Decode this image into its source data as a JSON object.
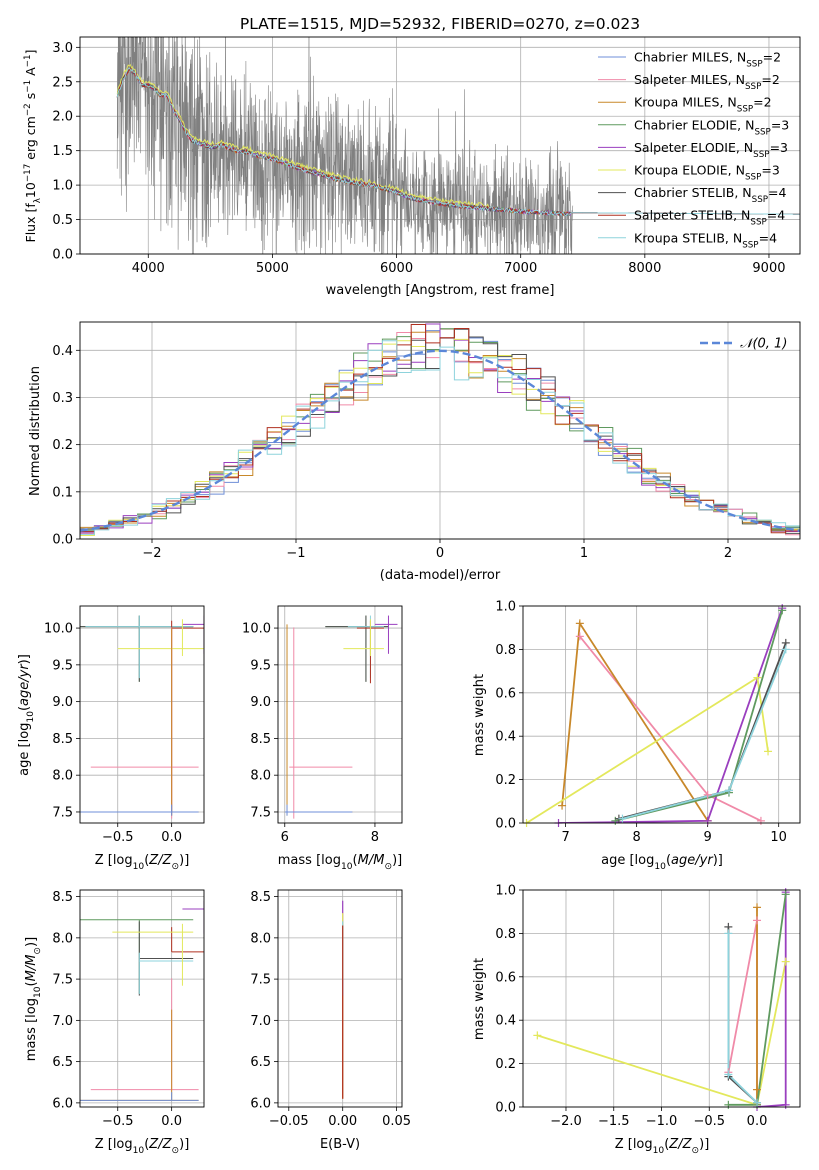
{
  "figure": {
    "title": "PLATE=1515, MJD=52932, FIBERID=0270, z=0.023"
  },
  "model_colors": [
    "#6f8fd8",
    "#f08aa8",
    "#c8882a",
    "#5f9a5f",
    "#9a3fbf",
    "#e3e85c",
    "#505050",
    "#b03020",
    "#8ed3dc"
  ],
  "chart_data": [
    {
      "id": "spectrum",
      "type": "line",
      "xlabel": "wavelength [Angstrom, rest frame]",
      "ylabel": "Flux [f_λ 10^-17 erg cm^-2 s^-1 A^-1]",
      "xlim": [
        3450,
        9250
      ],
      "ylim": [
        0,
        3.15
      ],
      "xticks": [
        4000,
        5000,
        6000,
        7000,
        8000,
        9000
      ],
      "yticks": [
        0.0,
        0.5,
        1.0,
        1.5,
        2.0,
        2.5,
        3.0
      ],
      "yticklabels": [
        "0.0",
        "0.5",
        "1.0",
        "1.5",
        "2.0",
        "2.5",
        "3.0"
      ],
      "legend_position": "top-right",
      "data_color": "#808080",
      "data_range": [
        3750,
        7420
      ],
      "legend": [
        {
          "name": "Chabrier MILES",
          "nssp": "2",
          "color": "#6f8fd8"
        },
        {
          "name": "Salpeter MILES",
          "nssp": "2",
          "color": "#f08aa8"
        },
        {
          "name": "Kroupa MILES",
          "nssp": "2",
          "color": "#c8882a"
        },
        {
          "name": "Chabrier ELODIE",
          "nssp": "3",
          "color": "#5f9a5f"
        },
        {
          "name": "Salpeter ELODIE",
          "nssp": "3",
          "color": "#9a3fbf"
        },
        {
          "name": "Kroupa ELODIE",
          "nssp": "3",
          "color": "#e3e85c"
        },
        {
          "name": "Chabrier STELIB",
          "nssp": "4",
          "color": "#505050"
        },
        {
          "name": "Salpeter STELIB",
          "nssp": "4",
          "color": "#b03020"
        },
        {
          "name": "Kroupa STELIB",
          "nssp": "4",
          "color": "#8ed3dc"
        }
      ],
      "model_continuum": {
        "x": [
          3750,
          3800,
          3850,
          3900,
          3950,
          4000,
          4050,
          4100,
          4150,
          4200,
          4250,
          4300,
          4350,
          4400,
          4500,
          4600,
          4700,
          4800,
          4900,
          5000,
          5100,
          5200,
          5300,
          5400,
          5500,
          5600,
          5700,
          5800,
          5900,
          6000,
          6100,
          6200,
          6400,
          6600,
          6800,
          7000,
          7200,
          7400,
          7600,
          7800,
          8000,
          8200,
          8600,
          9000,
          9250
        ],
        "y": [
          2.3,
          2.55,
          2.7,
          2.6,
          2.45,
          2.45,
          2.4,
          2.3,
          2.3,
          2.1,
          1.95,
          1.78,
          1.65,
          1.62,
          1.55,
          1.58,
          1.5,
          1.48,
          1.42,
          1.38,
          1.32,
          1.25,
          1.2,
          1.15,
          1.1,
          1.05,
          1.02,
          1.0,
          0.95,
          0.9,
          0.82,
          0.78,
          0.72,
          0.68,
          0.65,
          0.62,
          0.6,
          0.58,
          0.6,
          0.6,
          0.58,
          0.57,
          0.56,
          0.55,
          0.55
        ]
      }
    },
    {
      "id": "residuals",
      "type": "line",
      "xlabel": "(data-model)/error",
      "ylabel": "Normed distribution",
      "xlim": [
        -2.5,
        2.5
      ],
      "ylim": [
        0,
        0.46
      ],
      "xticks": [
        -2,
        -1,
        0,
        1,
        2
      ],
      "xticklabels": [
        "−2",
        "−1",
        "0",
        "1",
        "2"
      ],
      "yticks": [
        0.0,
        0.1,
        0.2,
        0.3,
        0.4
      ],
      "yticklabels": [
        "0.0",
        "0.1",
        "0.2",
        "0.3",
        "0.4"
      ],
      "legend_position": "top-right",
      "reference": {
        "name": "𝒩(0, 1)",
        "mean": 0,
        "sigma": 1,
        "color": "#5b87d8"
      }
    },
    {
      "id": "age_vs_Z",
      "type": "scatter",
      "xlabel": "Z [log10(Z/Z⊙)]",
      "ylabel": "age [log10(age/yr)]",
      "xlim": [
        -0.85,
        0.3
      ],
      "ylim": [
        7.35,
        10.3
      ],
      "xticks": [
        -0.5,
        0.0
      ],
      "xticklabels": [
        "−0.5",
        "0.0"
      ],
      "yticks": [
        7.5,
        8.0,
        8.5,
        9.0,
        9.5,
        10.0
      ],
      "yticklabels": [
        "7.5",
        "8.0",
        "8.5",
        "9.0",
        "9.5",
        "10.0"
      ]
    },
    {
      "id": "age_vs_mass",
      "type": "scatter",
      "xlabel": "mass [log10(M/M⊙)]",
      "ylabel": "",
      "xlim": [
        5.85,
        8.6
      ],
      "ylim": [
        7.35,
        10.3
      ],
      "xticks": [
        6,
        8
      ],
      "xticklabels": [
        "6",
        "8"
      ],
      "yticks": [
        7.5,
        8.0,
        8.5,
        9.0,
        9.5,
        10.0
      ],
      "yticklabels": [
        "7.5",
        "8.0",
        "8.5",
        "9.0",
        "9.5",
        "10.0"
      ]
    },
    {
      "id": "weight_vs_age",
      "type": "line",
      "xlabel": "age [log10(age/yr)]",
      "ylabel": "mass weight",
      "xlim": [
        6.4,
        10.3
      ],
      "ylim": [
        0,
        1.0
      ],
      "xticks": [
        7,
        8,
        9,
        10
      ],
      "xticklabels": [
        "7",
        "8",
        "9",
        "10"
      ],
      "yticks": [
        0.0,
        0.2,
        0.4,
        0.6,
        0.8,
        1.0
      ],
      "yticklabels": [
        "0.0",
        "0.2",
        "0.4",
        "0.6",
        "0.8",
        "1.0"
      ],
      "series": [
        {
          "color": "#f08aa8",
          "x": [
            7.2,
            9.0,
            9.75
          ],
          "y": [
            0.86,
            0.13,
            0.01
          ]
        },
        {
          "color": "#c8882a",
          "x": [
            6.95,
            7.2,
            9.0
          ],
          "y": [
            0.08,
            0.92,
            0.01
          ]
        },
        {
          "color": "#e3e85c",
          "x": [
            6.45,
            9.7,
            9.85
          ],
          "y": [
            0.0,
            0.67,
            0.33
          ]
        },
        {
          "color": "#9a3fbf",
          "x": [
            6.9,
            9.0,
            10.05
          ],
          "y": [
            0.0,
            0.01,
            0.99
          ]
        },
        {
          "color": "#5f9a5f",
          "x": [
            7.7,
            9.3,
            10.05
          ],
          "y": [
            0.01,
            0.14,
            0.98
          ]
        },
        {
          "color": "#505050",
          "x": [
            7.75,
            9.3,
            10.1
          ],
          "y": [
            0.02,
            0.15,
            0.83
          ]
        },
        {
          "color": "#8ed3dc",
          "x": [
            7.8,
            9.3,
            10.1
          ],
          "y": [
            0.02,
            0.15,
            0.8
          ]
        }
      ]
    },
    {
      "id": "mass_vs_Z",
      "type": "scatter",
      "xlabel": "Z [log10(Z/Z⊙)]",
      "ylabel": "mass [log10(M/M⊙)]",
      "xlim": [
        -0.85,
        0.3
      ],
      "ylim": [
        5.95,
        8.58
      ],
      "xticks": [
        -0.5,
        0.0
      ],
      "xticklabels": [
        "−0.5",
        "0.0"
      ],
      "yticks": [
        6.0,
        6.5,
        7.0,
        7.5,
        8.0,
        8.5
      ],
      "yticklabels": [
        "6.0",
        "6.5",
        "7.0",
        "7.5",
        "8.0",
        "8.5"
      ]
    },
    {
      "id": "mass_vs_ebv",
      "type": "scatter",
      "xlabel": "E(B-V)",
      "ylabel": "",
      "xlim": [
        -0.06,
        0.055
      ],
      "ylim": [
        5.95,
        8.58
      ],
      "xticks": [
        -0.05,
        0.0,
        0.05
      ],
      "xticklabels": [
        "−0.05",
        "0.00",
        "0.05"
      ],
      "yticks": [
        6.0,
        6.5,
        7.0,
        7.5,
        8.0,
        8.5
      ],
      "yticklabels": [
        "6.0",
        "6.5",
        "7.0",
        "7.5",
        "8.0",
        "8.5"
      ]
    },
    {
      "id": "weight_vs_Z",
      "type": "line",
      "xlabel": "Z [log10(Z/Z⊙)]",
      "ylabel": "mass weight",
      "xlim": [
        -2.45,
        0.45
      ],
      "ylim": [
        0,
        1.0
      ],
      "xticks": [
        -2.0,
        -1.5,
        -1.0,
        -0.5,
        0.0
      ],
      "xticklabels": [
        "−2.0",
        "−1.5",
        "−1.0",
        "−0.5",
        "0.0"
      ],
      "yticks": [
        0.0,
        0.2,
        0.4,
        0.6,
        0.8,
        1.0
      ],
      "yticklabels": [
        "0.0",
        "0.2",
        "0.4",
        "0.6",
        "0.8",
        "1.0"
      ],
      "series": [
        {
          "color": "#f08aa8",
          "x": [
            -0.3,
            0.0,
            0.0
          ],
          "y": [
            0.16,
            0.86,
            0.01
          ]
        },
        {
          "color": "#c8882a",
          "x": [
            0.0,
            0.0,
            0.0
          ],
          "y": [
            0.08,
            0.92,
            0.01
          ]
        },
        {
          "color": "#e3e85c",
          "x": [
            -2.3,
            0.0,
            0.3
          ],
          "y": [
            0.33,
            0.01,
            0.67
          ]
        },
        {
          "color": "#9a3fbf",
          "x": [
            0.3,
            0.3,
            0.0
          ],
          "y": [
            0.99,
            0.01,
            0.0
          ]
        },
        {
          "color": "#5f9a5f",
          "x": [
            -0.3,
            0.0,
            0.3
          ],
          "y": [
            0.01,
            0.01,
            0.98
          ]
        },
        {
          "color": "#505050",
          "x": [
            -0.3,
            -0.3,
            0.0
          ],
          "y": [
            0.83,
            0.14,
            0.02
          ]
        },
        {
          "color": "#8ed3dc",
          "x": [
            -0.3,
            -0.3,
            0.0
          ],
          "y": [
            0.8,
            0.15,
            0.02
          ]
        }
      ]
    }
  ]
}
